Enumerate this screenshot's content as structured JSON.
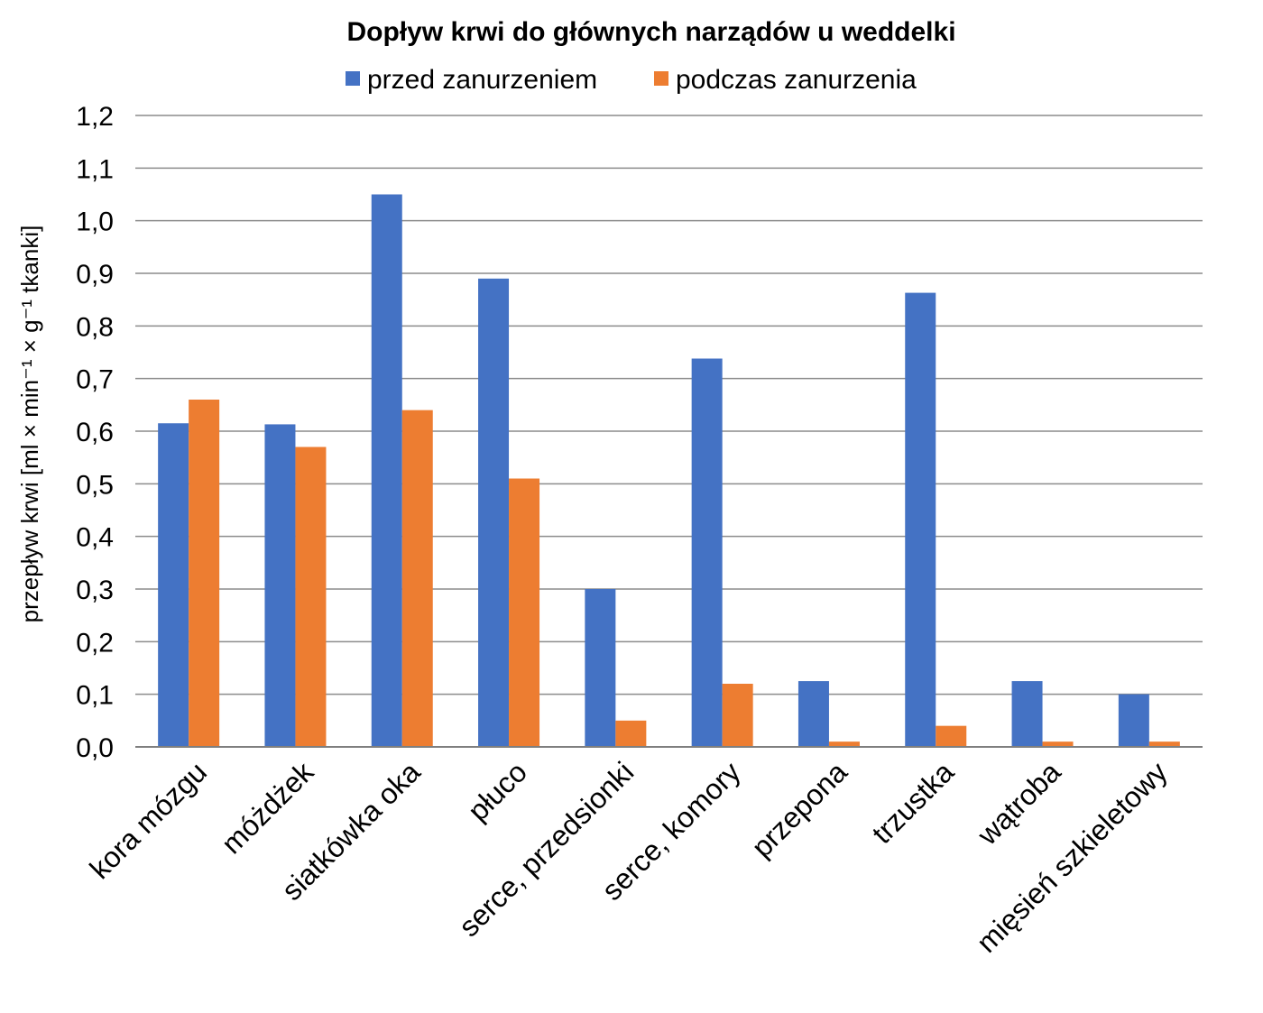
{
  "chart_data": {
    "type": "bar",
    "title": "Dopływ krwi do głównych narządów u weddelki",
    "ylabel": "przepływ krwi [ml × min⁻¹ × g⁻¹ tkanki]",
    "xlabel": "",
    "ylim": [
      0,
      1.2
    ],
    "ytick_step": 0.1,
    "yticks": [
      "0,0",
      "0,1",
      "0,2",
      "0,3",
      "0,4",
      "0,5",
      "0,6",
      "0,7",
      "0,8",
      "0,9",
      "1,0",
      "1,1",
      "1,2"
    ],
    "grid": true,
    "legend_position": "top-center",
    "categories": [
      "kora mózgu",
      "móżdżek",
      "siatkówka oka",
      "płuco",
      "serce, przedsionki",
      "serce, komory",
      "przepona",
      "trzustka",
      "wątroba",
      "mięsień szkieletowy"
    ],
    "series": [
      {
        "name": "przed zanurzeniem",
        "color": "#4472C4",
        "values": [
          0.615,
          0.613,
          1.05,
          0.89,
          0.3,
          0.738,
          0.125,
          0.863,
          0.125,
          0.1
        ]
      },
      {
        "name": "podczas zanurzenia",
        "color": "#ED7D31",
        "values": [
          0.66,
          0.57,
          0.64,
          0.51,
          0.05,
          0.12,
          0.01,
          0.04,
          0.01,
          0.01
        ]
      }
    ]
  },
  "colors": {
    "grid": "#8C8C8C",
    "axis": "#7F7F7F"
  }
}
